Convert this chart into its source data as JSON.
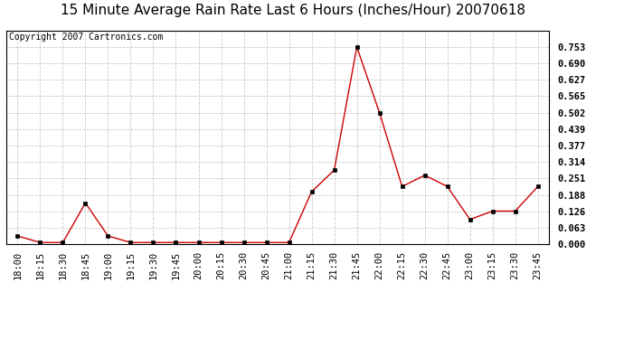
{
  "title": "15 Minute Average Rain Rate Last 6 Hours (Inches/Hour) 20070618",
  "copyright": "Copyright 2007 Cartronics.com",
  "line_color": "#cc0000",
  "marker_color": "#000000",
  "background_color": "#ffffff",
  "grid_color": "#c8c8c8",
  "xlabels": [
    "18:00",
    "18:15",
    "18:30",
    "18:45",
    "19:00",
    "19:15",
    "19:30",
    "19:45",
    "20:00",
    "20:15",
    "20:30",
    "20:45",
    "21:00",
    "21:15",
    "21:30",
    "21:45",
    "22:00",
    "22:15",
    "22:30",
    "22:45",
    "23:00",
    "23:15",
    "23:30",
    "23:45"
  ],
  "yvalues": [
    0.031,
    0.006,
    0.006,
    0.157,
    0.031,
    0.006,
    0.006,
    0.006,
    0.006,
    0.006,
    0.006,
    0.006,
    0.006,
    0.2,
    0.283,
    0.753,
    0.502,
    0.22,
    0.263,
    0.22,
    0.094,
    0.126,
    0.126,
    0.22
  ],
  "ylim": [
    0.0,
    0.816
  ],
  "yticks": [
    0.0,
    0.063,
    0.126,
    0.188,
    0.251,
    0.314,
    0.377,
    0.439,
    0.502,
    0.565,
    0.627,
    0.69,
    0.753
  ],
  "title_fontsize": 11,
  "copyright_fontsize": 7,
  "tick_fontsize": 7.5,
  "marker_size": 3
}
